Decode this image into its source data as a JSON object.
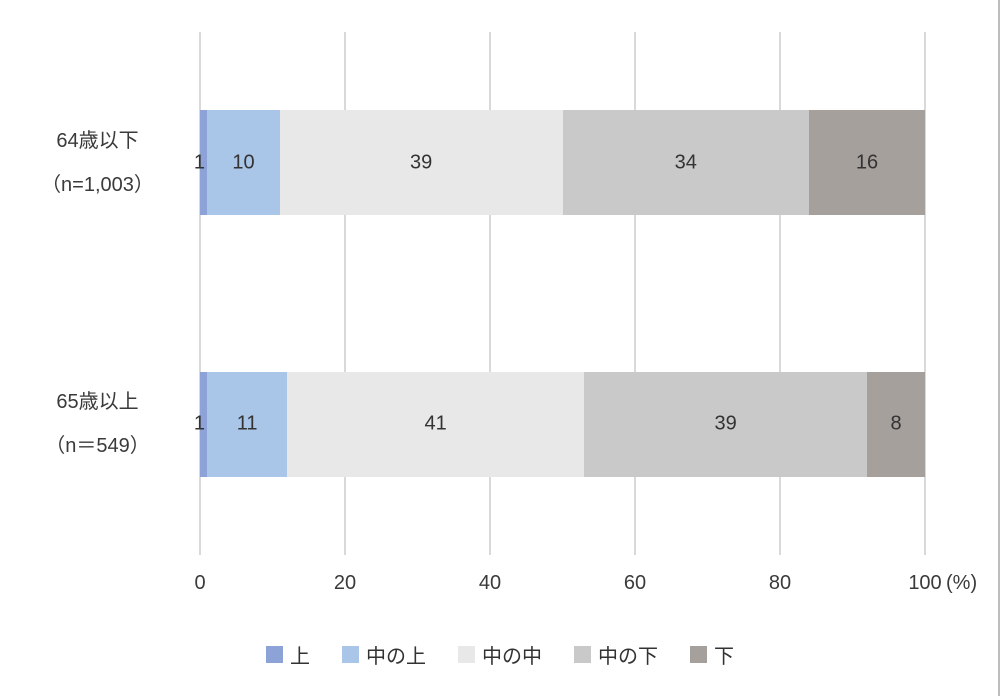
{
  "chart_data": {
    "type": "bar",
    "orientation": "horizontal-stacked",
    "title": "",
    "xlabel": "",
    "ylabel": "",
    "unit_label": "(%)",
    "xlim": [
      0,
      100
    ],
    "x_ticks": [
      0,
      20,
      40,
      60,
      80,
      100
    ],
    "grid": true,
    "legend_position": "bottom",
    "categories": [
      {
        "label": "64歳以下",
        "n_label": "（n=1,003）"
      },
      {
        "label": "65歳以上",
        "n_label": "（n＝549）"
      }
    ],
    "series": [
      {
        "name": "上",
        "color": "#8da3d8",
        "values": [
          1,
          1
        ]
      },
      {
        "name": "中の上",
        "color": "#a9c5e8",
        "values": [
          10,
          11
        ]
      },
      {
        "name": "中の中",
        "color": "#e8e8e8",
        "values": [
          39,
          41
        ]
      },
      {
        "name": "中の下",
        "color": "#c9c9c9",
        "values": [
          34,
          39
        ]
      },
      {
        "name": "下",
        "color": "#a6a09d",
        "values": [
          16,
          8
        ]
      }
    ]
  },
  "colors": {
    "gridline": "#d9d9d9",
    "text": "#3a3a3a",
    "value_text": "#333333",
    "right_edge": "#bdbdbd",
    "background": "#ffffff"
  }
}
